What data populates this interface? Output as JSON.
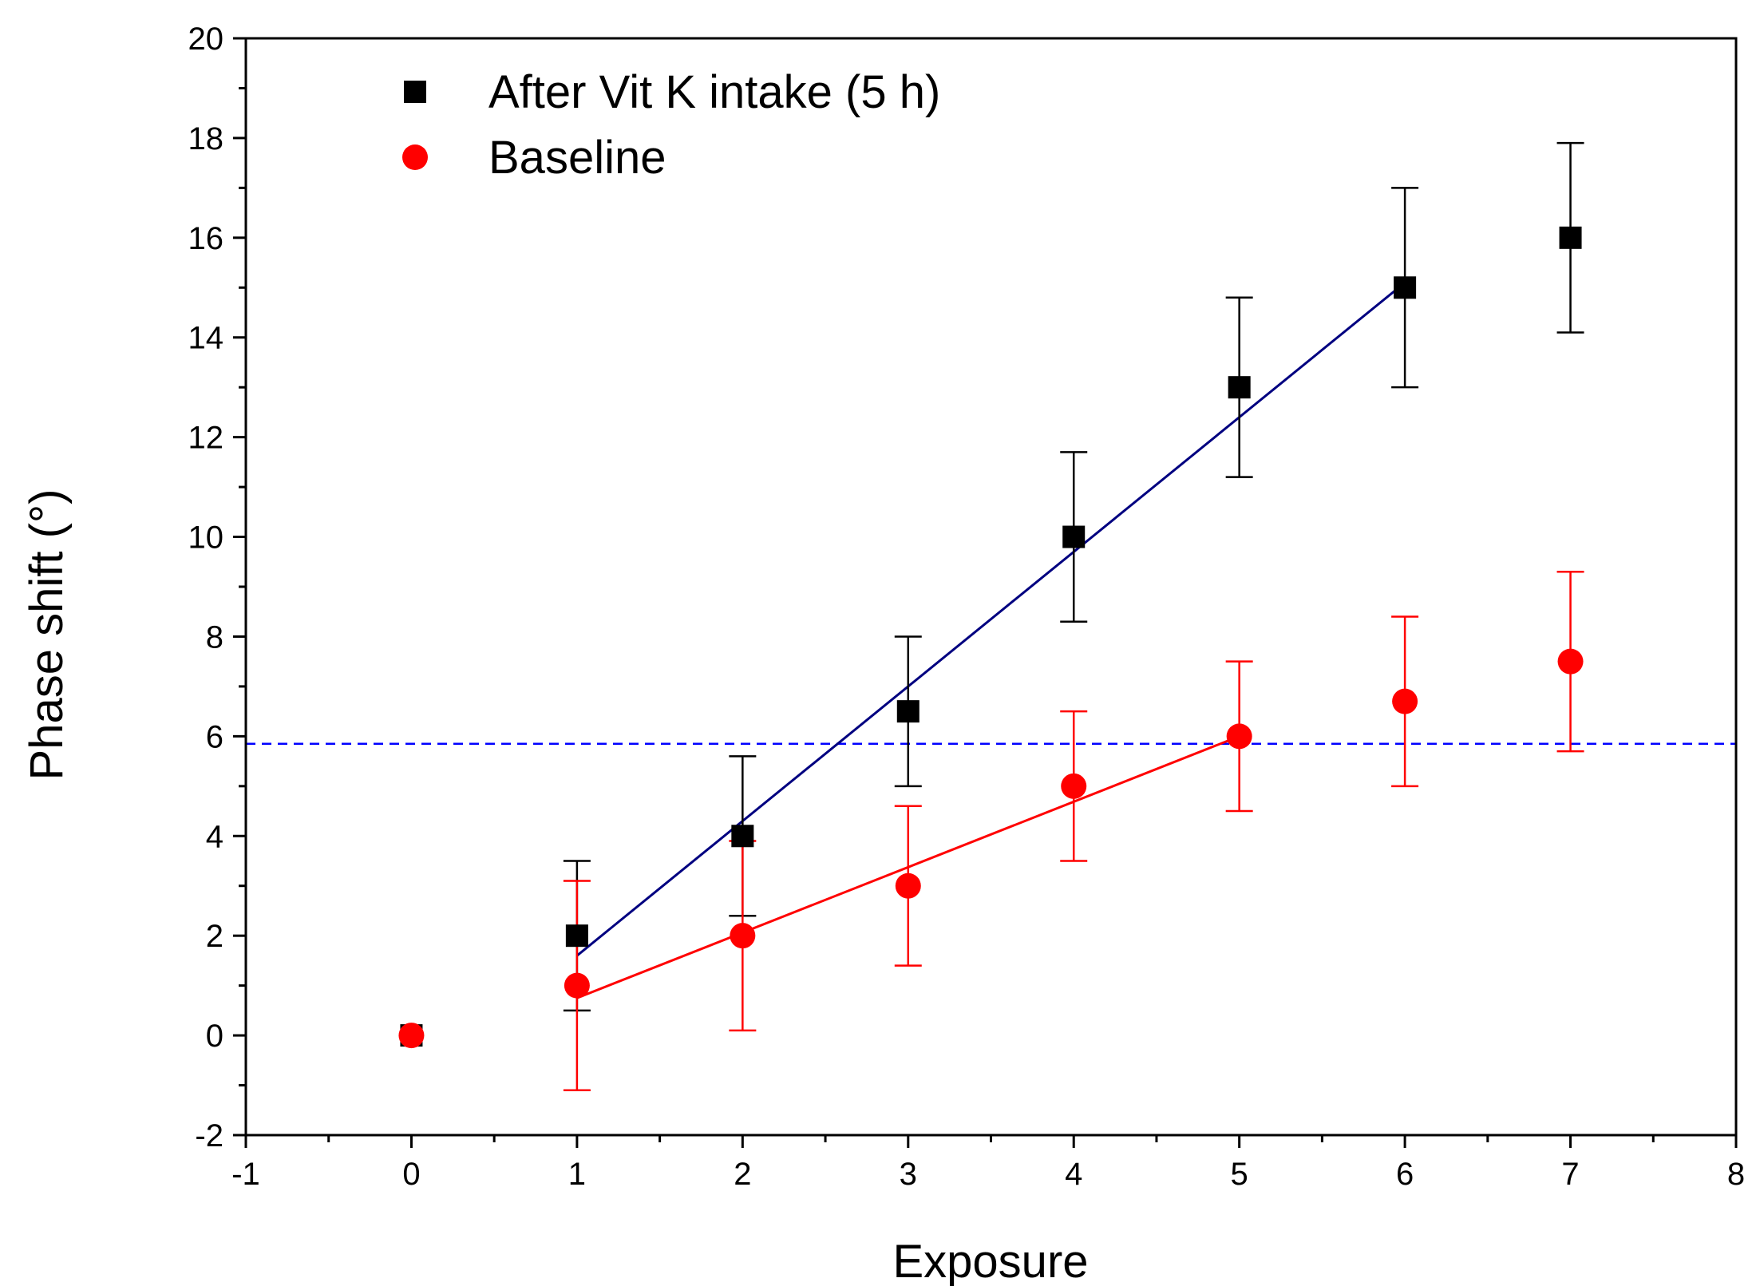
{
  "chart_data": {
    "type": "scatter",
    "xlabel": "Exposure",
    "ylabel": "Phase shift (°)",
    "xlim": [
      -1,
      8
    ],
    "ylim": [
      -2,
      20
    ],
    "x_ticks": [
      "-1",
      "0",
      "1",
      "2",
      "3",
      "4",
      "5",
      "6",
      "7",
      "8"
    ],
    "y_ticks": [
      "-2",
      "0",
      "2",
      "4",
      "6",
      "8",
      "10",
      "12",
      "14",
      "16",
      "18",
      "20"
    ],
    "legend_placement": "top-left",
    "series": [
      {
        "name": "After Vit K intake (5 h)",
        "marker": "square",
        "color": "#000000",
        "points": [
          {
            "x": 0,
            "y": 0,
            "err": 0
          },
          {
            "x": 1,
            "y": 2,
            "err": 1.5
          },
          {
            "x": 2,
            "y": 4,
            "err": 1.6
          },
          {
            "x": 3,
            "y": 6.5,
            "err": 1.5
          },
          {
            "x": 4,
            "y": 10,
            "err": 1.7
          },
          {
            "x": 5,
            "y": 13,
            "err": 1.8
          },
          {
            "x": 6,
            "y": 15,
            "err": 2.0
          },
          {
            "x": 7,
            "y": 16,
            "err": 1.9
          }
        ],
        "fit_line": {
          "color": "#000080",
          "x": [
            1,
            6
          ],
          "y": [
            1.6,
            15.1
          ]
        }
      },
      {
        "name": "Baseline",
        "marker": "circle",
        "color": "#ff0000",
        "points": [
          {
            "x": 0,
            "y": 0,
            "err": 0
          },
          {
            "x": 1,
            "y": 1,
            "err": 2.1
          },
          {
            "x": 2,
            "y": 2,
            "err": 1.9
          },
          {
            "x": 3,
            "y": 3,
            "err": 1.6
          },
          {
            "x": 4,
            "y": 5,
            "err": 1.5
          },
          {
            "x": 5,
            "y": 6,
            "err": 1.5
          },
          {
            "x": 6,
            "y": 6.7,
            "err": 1.7
          },
          {
            "x": 7,
            "y": 7.5,
            "err": 1.8
          }
        ],
        "fit_line": {
          "color": "#ff0000",
          "x": [
            1,
            5
          ],
          "y": [
            0.75,
            6.0
          ]
        }
      }
    ],
    "reference_line": {
      "y": 5.85,
      "style": "dashed",
      "color": "#0000ff"
    }
  }
}
